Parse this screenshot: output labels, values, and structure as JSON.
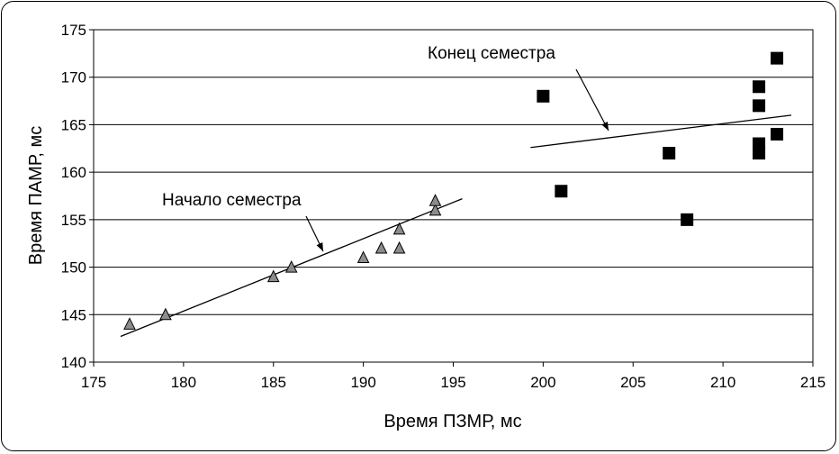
{
  "chart_data": {
    "type": "scatter",
    "xlabel": "Время ПЗМР, мс",
    "ylabel": "Время ПАМР, мс",
    "xlim": [
      175,
      215
    ],
    "ylim": [
      140,
      175
    ],
    "x_ticks": [
      "175",
      "180",
      "185",
      "190",
      "195",
      "200",
      "205",
      "210",
      "215"
    ],
    "y_ticks": [
      "140",
      "145",
      "150",
      "155",
      "160",
      "165",
      "170",
      "175"
    ],
    "grid": "horizontal",
    "series": [
      {
        "marker": "triangle",
        "color": "#8c8c8c",
        "points": [
          [
            177,
            144
          ],
          [
            179,
            145
          ],
          [
            185,
            149
          ],
          [
            186,
            150
          ],
          [
            190,
            151
          ],
          [
            191,
            152
          ],
          [
            192,
            152
          ],
          [
            192,
            154
          ],
          [
            194,
            156
          ],
          [
            194,
            157
          ]
        ],
        "trendline": [
          [
            176.5,
            142.7
          ],
          [
            195.5,
            157.2
          ]
        ]
      },
      {
        "marker": "square",
        "color": "#000000",
        "points": [
          [
            200,
            168
          ],
          [
            201,
            158
          ],
          [
            207,
            162
          ],
          [
            208,
            155
          ],
          [
            212,
            162
          ],
          [
            212,
            163
          ],
          [
            212,
            167
          ],
          [
            212,
            169
          ],
          [
            213,
            164
          ],
          [
            213,
            172
          ]
        ],
        "trendline": [
          [
            199.3,
            162.6
          ],
          [
            213.8,
            166.0
          ]
        ]
      }
    ],
    "annotations": [
      {
        "text": "Начало семестра",
        "x": 188,
        "y": 152.5
      },
      {
        "text": "Конец семестра",
        "x": 203.8,
        "y": 164.3
      }
    ]
  }
}
